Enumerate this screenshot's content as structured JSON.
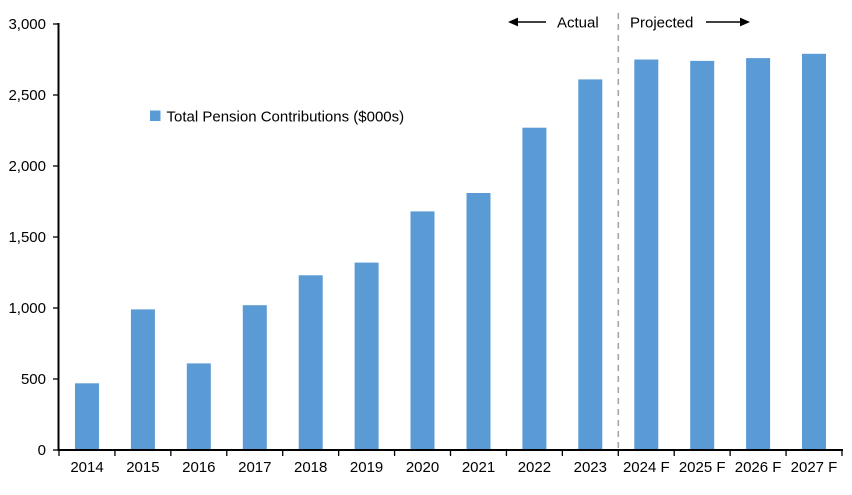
{
  "chart_data": {
    "type": "bar",
    "title": "",
    "categories": [
      "2014",
      "2015",
      "2016",
      "2017",
      "2018",
      "2019",
      "2020",
      "2021",
      "2022",
      "2023",
      "2024 F",
      "2025 F",
      "2026 F",
      "2027 F"
    ],
    "series": [
      {
        "name": "Total Pension Contributions ($000s)",
        "values": [
          470,
          990,
          610,
          1020,
          1230,
          1320,
          1680,
          1810,
          2270,
          2610,
          2750,
          2740,
          2760,
          2790
        ]
      }
    ],
    "xlabel": "",
    "ylabel": "",
    "ylim": [
      0,
      3000
    ],
    "ytick_interval": 500,
    "ytick_labels": [
      "0",
      "500",
      "1,000",
      "1,500",
      "2,000",
      "2,500",
      "3,000"
    ],
    "grid": false,
    "legend_position": "inside-upper-left",
    "bar_color": "#5B9BD5",
    "axis_color": "#000000",
    "divider": {
      "after_category": "2023",
      "color": "#A6A6A6",
      "style": "dashed"
    },
    "annotations": [
      {
        "text": "Actual",
        "side": "left-of-divider",
        "arrow": "points-left"
      },
      {
        "text": "Projected",
        "side": "right-of-divider",
        "arrow": "points-right"
      }
    ]
  },
  "legend": {
    "label": "Total Pension Contributions ($000s)"
  },
  "annotations": {
    "actual": "Actual",
    "projected": "Projected"
  }
}
